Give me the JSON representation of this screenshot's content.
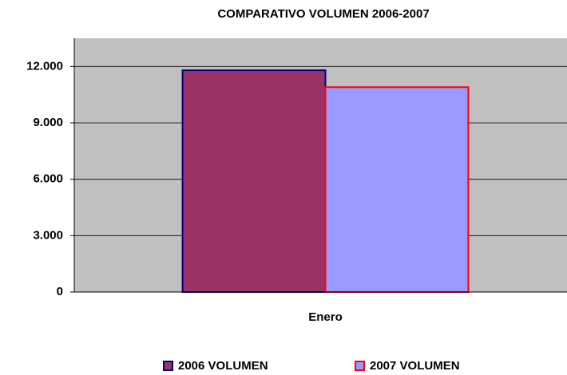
{
  "chart_data": {
    "type": "bar",
    "title": "COMPARATIVO VOLUMEN 2006-2007",
    "categories": [
      "Enero"
    ],
    "series": [
      {
        "name": "2006 VOLUMEN",
        "color": "#993366",
        "edgecolor": "#000080",
        "values": [
          11800
        ]
      },
      {
        "name": "2007 VOLUMEN",
        "color": "#9999ff",
        "edgecolor": "#ff0000",
        "values": [
          10900
        ]
      }
    ],
    "ylim": [
      0,
      13500
    ],
    "yticks": [
      0,
      {
        "value": 3000,
        "label": "3.000"
      },
      {
        "value": 6000,
        "label": "6.000"
      },
      {
        "value": 9000,
        "label": "9.000"
      },
      {
        "value": 12000,
        "label": "12.000"
      }
    ],
    "grid": true,
    "legend": "bottom"
  }
}
